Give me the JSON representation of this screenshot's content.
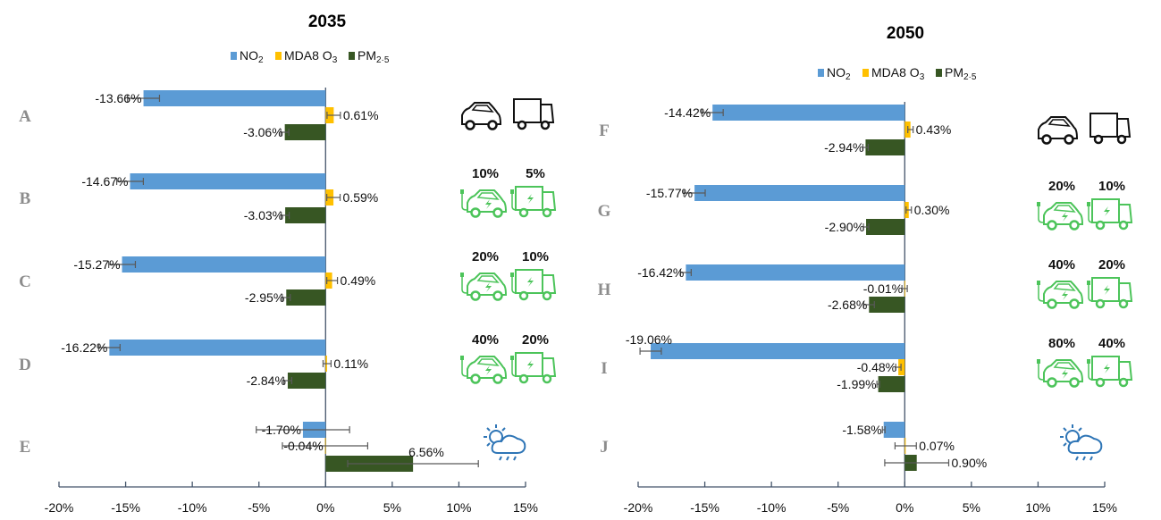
{
  "colors": {
    "NO2": "#5b9bd5",
    "O3": "#ffc000",
    "PM": "#375623",
    "axis": "#44546a",
    "ev": "#4cc45a",
    "weather": "#2e75b6"
  },
  "legend": [
    {
      "key": "NO2",
      "main": "NO",
      "sub": "2"
    },
    {
      "key": "O3",
      "main": "MDA8 O",
      "sub": "3"
    },
    {
      "key": "PM",
      "main": "PM",
      "sub": "2·5"
    }
  ],
  "chart_data": [
    {
      "type": "bar",
      "orientation": "horizontal",
      "title": "2035",
      "xlim": [
        -20,
        15
      ],
      "xticks": [
        "-20%",
        "-15%",
        "-10%",
        "-5%",
        "0%",
        "5%",
        "10%",
        "15%"
      ],
      "categories": [
        "A",
        "B",
        "C",
        "D",
        "E"
      ],
      "series": [
        {
          "name": "NO2",
          "values": [
            -13.66,
            -14.67,
            -15.27,
            -16.22,
            -1.7
          ],
          "errors": [
            1.2,
            1.0,
            1.0,
            0.8,
            3.5
          ]
        },
        {
          "name": "MDA8 O3",
          "values": [
            0.61,
            0.59,
            0.49,
            0.11,
            -0.04
          ],
          "errors": [
            0.5,
            0.5,
            0.4,
            0.3,
            3.2
          ]
        },
        {
          "name": "PM2.5",
          "values": [
            -3.06,
            -3.03,
            -2.95,
            -2.84,
            6.56
          ],
          "errors": [
            0.3,
            0.3,
            0.3,
            0.3,
            4.9
          ]
        }
      ],
      "labels": [
        [
          "-13.66%",
          "0.61%",
          "-3.06%"
        ],
        [
          "-14.67%",
          "0.59%",
          "-3.03%"
        ],
        [
          "-15.27%",
          "0.49%",
          "-2.95%"
        ],
        [
          "-16.22%",
          "0.11%",
          "-2.84%"
        ],
        [
          "-1.70%",
          "-0.04%",
          "6.56%"
        ]
      ],
      "scenarios": [
        {
          "icon": "conventional",
          "car": "",
          "truck": ""
        },
        {
          "icon": "electric",
          "car": "10%",
          "truck": "5%"
        },
        {
          "icon": "electric",
          "car": "20%",
          "truck": "10%"
        },
        {
          "icon": "electric",
          "car": "40%",
          "truck": "20%"
        },
        {
          "icon": "weather"
        }
      ]
    },
    {
      "type": "bar",
      "orientation": "horizontal",
      "title": "2050",
      "xlim": [
        -20,
        15
      ],
      "xticks": [
        "-20%",
        "-15%",
        "-10%",
        "-5%",
        "0%",
        "5%",
        "10%",
        "15%"
      ],
      "categories": [
        "F",
        "G",
        "H",
        "I",
        "J"
      ],
      "series": [
        {
          "name": "NO2",
          "values": [
            -14.42,
            -15.77,
            -16.42,
            -19.06,
            -1.58
          ],
          "errors": [
            0.8,
            0.8,
            0.4,
            0.8,
            0.1
          ]
        },
        {
          "name": "MDA8 O3",
          "values": [
            0.43,
            0.3,
            -0.01,
            -0.48,
            0.07
          ],
          "errors": [
            0.2,
            0.2,
            0.2,
            0.2,
            0.8
          ]
        },
        {
          "name": "PM2.5",
          "values": [
            -2.94,
            -2.9,
            -2.68,
            -1.99,
            0.9
          ],
          "errors": [
            0.2,
            0.2,
            0.4,
            0.1,
            2.4
          ]
        }
      ],
      "labels": [
        [
          "-14.42%",
          "0.43%",
          "-2.94%"
        ],
        [
          "-15.77%",
          "0.30%",
          "-2.90%"
        ],
        [
          "-16.42%",
          "-0.01%",
          "-2.68%"
        ],
        [
          "-19.06%",
          "-0.48%",
          "-1.99%"
        ],
        [
          "-1.58%",
          "0.07%",
          "0.90%"
        ]
      ],
      "scenarios": [
        {
          "icon": "conventional",
          "car": "",
          "truck": ""
        },
        {
          "icon": "electric",
          "car": "20%",
          "truck": "10%"
        },
        {
          "icon": "electric",
          "car": "40%",
          "truck": "20%"
        },
        {
          "icon": "electric",
          "car": "80%",
          "truck": "40%"
        },
        {
          "icon": "weather"
        }
      ]
    }
  ]
}
